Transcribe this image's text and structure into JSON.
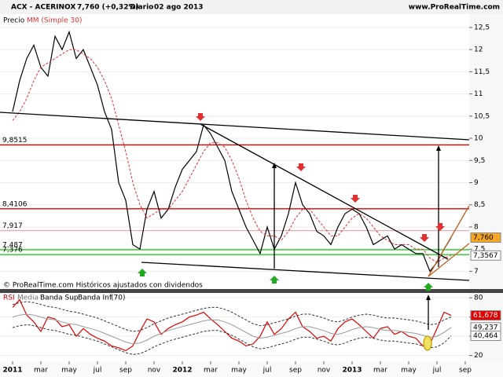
{
  "chart_data": [
    {
      "type": "line",
      "title": "ACX - ACERINOX",
      "subtitle": "7,760 (+0,32%)",
      "period": "Diario",
      "date": "02 ago 2013",
      "source": "www.ProRealTime.com",
      "footnote": "© ProRealTime.com Históricos ajustados con dividendos",
      "categories": [
        "2011",
        null,
        null,
        null,
        "mar",
        null,
        null,
        null,
        "may",
        null,
        null,
        null,
        "jul",
        null,
        null,
        null,
        "sep",
        null,
        null,
        null,
        "nov",
        null,
        null,
        null,
        "2012",
        null,
        null,
        null,
        "mar",
        null,
        null,
        null,
        "may",
        null,
        null,
        null,
        "jul",
        null,
        null,
        null,
        "sep",
        null,
        null,
        null,
        "nov",
        null,
        null,
        null,
        "2013",
        null,
        null,
        null,
        "mar",
        null,
        null,
        null,
        "may",
        null,
        null,
        null,
        "jul",
        null,
        null,
        null,
        "sep"
      ],
      "series": [
        {
          "name": "Precio",
          "color": "#000000",
          "label_color": "#f5a623",
          "values": [
            10.6,
            11.3,
            11.8,
            12.1,
            11.6,
            11.4,
            12.3,
            12.0,
            12.4,
            11.8,
            12.0,
            11.6,
            11.2,
            10.6,
            10.2,
            9.0,
            8.6,
            7.6,
            7.5,
            8.4,
            8.8,
            8.2,
            8.4,
            8.9,
            9.3,
            9.5,
            9.7,
            10.3,
            10.1,
            9.8,
            9.5,
            8.8,
            8.4,
            8.0,
            7.7,
            7.4,
            8.0,
            7.5,
            7.8,
            8.3,
            9.0,
            8.5,
            8.3,
            7.9,
            7.8,
            7.6,
            8.0,
            8.3,
            8.4,
            8.3,
            8.0,
            7.6,
            7.7,
            7.8,
            7.5,
            7.6,
            7.5,
            7.4,
            7.4,
            7.0,
            7.2,
            7.5,
            7.76,
            null,
            null
          ],
          "value_labels": [
            null,
            null,
            null,
            null,
            null,
            null,
            null,
            null,
            null,
            null,
            null,
            null,
            null,
            null,
            null,
            null,
            null,
            null,
            null,
            null,
            null,
            null,
            null,
            null,
            null,
            null,
            null,
            null,
            null,
            null,
            null,
            null,
            null,
            null,
            null,
            null,
            null,
            null,
            null,
            null,
            null,
            null,
            null,
            null,
            null,
            null,
            null,
            null,
            null,
            null,
            null,
            null,
            null,
            null,
            null,
            null,
            null,
            null,
            null,
            null,
            null,
            null,
            "7,760",
            null,
            null
          ]
        },
        {
          "name": "MM (Simple 30)",
          "color": "#e03030",
          "label_color": "#ffffff",
          "dash": true,
          "values": [
            10.4,
            10.6,
            10.9,
            11.3,
            11.6,
            11.7,
            11.8,
            11.9,
            12.0,
            12.0,
            11.9,
            11.8,
            11.6,
            11.3,
            10.9,
            10.3,
            9.7,
            9.0,
            8.5,
            8.2,
            8.3,
            8.4,
            8.4,
            8.6,
            8.8,
            9.1,
            9.4,
            9.7,
            9.9,
            9.9,
            9.8,
            9.5,
            9.1,
            8.6,
            8.2,
            7.9,
            7.8,
            7.8,
            7.7,
            7.9,
            8.2,
            8.4,
            8.4,
            8.2,
            8.0,
            7.8,
            7.8,
            8.0,
            8.2,
            8.3,
            8.2,
            8.0,
            7.8,
            7.7,
            7.6,
            7.6,
            7.6,
            7.5,
            7.5,
            7.3,
            7.2,
            7.3,
            7.3567,
            null,
            null
          ],
          "value_labels": [
            null,
            null,
            null,
            null,
            null,
            null,
            null,
            null,
            null,
            null,
            null,
            null,
            null,
            null,
            null,
            null,
            null,
            null,
            null,
            null,
            null,
            null,
            null,
            null,
            null,
            null,
            null,
            null,
            null,
            null,
            null,
            null,
            null,
            null,
            null,
            null,
            null,
            null,
            null,
            null,
            null,
            null,
            null,
            null,
            null,
            null,
            null,
            null,
            null,
            null,
            null,
            null,
            null,
            null,
            null,
            null,
            null,
            null,
            null,
            null,
            null,
            null,
            "7,3567",
            null,
            null
          ]
        }
      ],
      "levels": [
        {
          "value": 9.8515,
          "label": "9,8515",
          "color": "#e00000"
        },
        {
          "value": 8.4106,
          "label": "8,4106",
          "color": "#e00000"
        },
        {
          "value": 7.917,
          "label": "7,917",
          "color": "#f0a8a8"
        },
        {
          "value": 7.487,
          "label": "7,487",
          "color": "#22cc22"
        },
        {
          "value": 7.376,
          "label": "7,376",
          "color": "#22cc22"
        }
      ],
      "ylim": [
        6.6,
        12.8
      ],
      "yticks": [
        {
          "value": 12.5,
          "label": "12,5"
        },
        12,
        {
          "value": 11.5,
          "label": "11,5"
        },
        11,
        {
          "value": 10.5,
          "label": "10,5"
        },
        10,
        {
          "value": 9.5,
          "label": "9,5"
        },
        9,
        {
          "value": 8.5,
          "label": "8,5"
        },
        8,
        {
          "value": 7.5,
          "label": "7,5"
        },
        7
      ]
    },
    {
      "type": "line",
      "series": [
        {
          "name": "RSI",
          "color": "#e00000",
          "label_color": "#e00000",
          "values": [
            70,
            78,
            62,
            55,
            45,
            60,
            58,
            50,
            52,
            40,
            48,
            42,
            38,
            35,
            30,
            28,
            25,
            30,
            45,
            58,
            55,
            42,
            48,
            52,
            55,
            60,
            62,
            65,
            58,
            52,
            45,
            38,
            35,
            30,
            32,
            40,
            55,
            42,
            48,
            58,
            65,
            50,
            45,
            38,
            40,
            35,
            48,
            55,
            58,
            52,
            45,
            38,
            48,
            50,
            42,
            45,
            40,
            38,
            30,
            32,
            48,
            65,
            61.678,
            null,
            null
          ],
          "value_labels": [
            null,
            null,
            null,
            null,
            null,
            null,
            null,
            null,
            null,
            null,
            null,
            null,
            null,
            null,
            null,
            null,
            null,
            null,
            null,
            null,
            null,
            null,
            null,
            null,
            null,
            null,
            null,
            null,
            null,
            null,
            null,
            null,
            null,
            null,
            null,
            null,
            null,
            null,
            null,
            null,
            null,
            null,
            null,
            null,
            null,
            null,
            null,
            null,
            null,
            null,
            null,
            null,
            null,
            null,
            null,
            null,
            null,
            null,
            null,
            null,
            null,
            null,
            "61,678",
            null,
            null
          ]
        },
        {
          "name": "Media",
          "color": "#999999",
          "label_color": "#ffffff",
          "values": [
            60,
            62,
            63,
            62,
            60,
            58,
            57,
            55,
            53,
            52,
            50,
            48,
            46,
            43,
            40,
            37,
            34,
            32,
            33,
            36,
            40,
            43,
            46,
            48,
            50,
            52,
            54,
            56,
            57,
            57,
            55,
            52,
            48,
            44,
            40,
            38,
            39,
            41,
            43,
            45,
            48,
            50,
            50,
            48,
            46,
            43,
            42,
            44,
            47,
            49,
            50,
            49,
            47,
            46,
            46,
            45,
            44,
            43,
            41,
            39,
            40,
            44,
            49.237,
            null,
            null
          ],
          "value_labels": [
            null,
            null,
            null,
            null,
            null,
            null,
            null,
            null,
            null,
            null,
            null,
            null,
            null,
            null,
            null,
            null,
            null,
            null,
            null,
            null,
            null,
            null,
            null,
            null,
            null,
            null,
            null,
            null,
            null,
            null,
            null,
            null,
            null,
            null,
            null,
            null,
            null,
            null,
            null,
            null,
            null,
            null,
            null,
            null,
            null,
            null,
            null,
            null,
            null,
            null,
            null,
            null,
            null,
            null,
            null,
            null,
            null,
            null,
            null,
            null,
            null,
            null,
            "49,237",
            null,
            null
          ]
        },
        {
          "name": "Banda Sup",
          "color": "#333333",
          "dash": true,
          "values": [
            73,
            75,
            76,
            75,
            73,
            71,
            70,
            68,
            66,
            65,
            63,
            61,
            59,
            56,
            53,
            50,
            47,
            45,
            46,
            49,
            53,
            56,
            59,
            61,
            63,
            65,
            67,
            69,
            70,
            70,
            68,
            65,
            61,
            57,
            53,
            51,
            52,
            54,
            56,
            58,
            61,
            63,
            63,
            61,
            59,
            56,
            55,
            57,
            60,
            62,
            63,
            62,
            60,
            59,
            59,
            58,
            57,
            56,
            54,
            52,
            53,
            57,
            60,
            null,
            null
          ]
        },
        {
          "name": "Banda Inf",
          "color": "#333333",
          "label_color": "#ffffff",
          "dash": true,
          "values": [
            49,
            51,
            52,
            51,
            49,
            47,
            46,
            44,
            42,
            41,
            39,
            37,
            35,
            32,
            29,
            26,
            23,
            21,
            22,
            25,
            29,
            32,
            35,
            37,
            39,
            41,
            43,
            45,
            46,
            46,
            44,
            41,
            37,
            33,
            29,
            27,
            28,
            30,
            32,
            34,
            37,
            39,
            39,
            37,
            35,
            32,
            31,
            33,
            36,
            38,
            39,
            38,
            36,
            35,
            35,
            34,
            33,
            32,
            30,
            28,
            29,
            33,
            40.464,
            null,
            null
          ],
          "value_labels": [
            null,
            null,
            null,
            null,
            null,
            null,
            null,
            null,
            null,
            null,
            null,
            null,
            null,
            null,
            null,
            null,
            null,
            null,
            null,
            null,
            null,
            null,
            null,
            null,
            null,
            null,
            null,
            null,
            null,
            null,
            null,
            null,
            null,
            null,
            null,
            null,
            null,
            null,
            null,
            null,
            null,
            null,
            null,
            null,
            null,
            null,
            null,
            null,
            null,
            null,
            null,
            null,
            null,
            null,
            null,
            null,
            null,
            null,
            null,
            null,
            null,
            null,
            "40,464",
            null,
            null
          ]
        }
      ],
      "period_label": "(70)",
      "ylim": [
        14,
        85
      ],
      "yticks": [
        80,
        60,
        40,
        20
      ]
    }
  ]
}
